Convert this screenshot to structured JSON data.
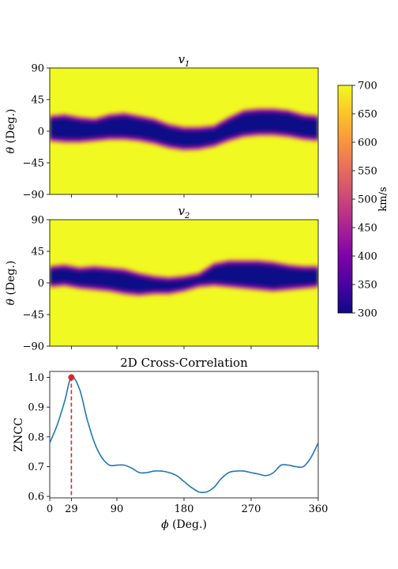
{
  "figure": {
    "panel1_title_base": "v",
    "panel1_title_sub": "1",
    "panel2_title_base": "v",
    "panel2_title_sub": "2",
    "map_ylabel": "θ (Deg.)",
    "map_yticks": [
      "90",
      "45",
      "0",
      "−45",
      "−90"
    ],
    "corr_title": "2D Cross-Correlation",
    "corr_ylabel": "ZNCC",
    "corr_xlabel": "ϕ (Deg.)",
    "colorbar_label": "km/s"
  },
  "colors": {
    "line": "#1f77b4",
    "peak_marker": "#d62728",
    "peak_line": "#d62728",
    "map_high": "#f0f921",
    "map_low": "#0d0887"
  },
  "colorbar": {
    "colormap": "plasma",
    "range": [
      300,
      700
    ],
    "ticks": [
      "700",
      "650",
      "600",
      "550",
      "500",
      "450",
      "400",
      "350",
      "300"
    ]
  },
  "chart_data": [
    {
      "type": "heatmap",
      "title": "v1",
      "ylabel": "θ (Deg.)",
      "xlim": [
        0,
        360
      ],
      "ylim": [
        -90,
        90
      ],
      "colormap": "plasma",
      "vlim": [
        300,
        700
      ],
      "yticks": [
        90,
        45,
        0,
        -45,
        -90
      ],
      "background_value": 700,
      "stream_band": {
        "phi": [
          0,
          20,
          40,
          60,
          80,
          100,
          120,
          140,
          160,
          180,
          200,
          220,
          240,
          260,
          280,
          300,
          320,
          340,
          360
        ],
        "lower_theta": [
          -12,
          -14,
          -14,
          -12,
          -10,
          -10,
          -12,
          -16,
          -22,
          -25,
          -24,
          -20,
          -12,
          -6,
          -4,
          -4,
          -6,
          -10,
          -12
        ],
        "upper_theta": [
          20,
          22,
          18,
          16,
          22,
          24,
          20,
          16,
          8,
          4,
          4,
          6,
          18,
          28,
          30,
          30,
          28,
          22,
          20
        ],
        "core_value": 300
      }
    },
    {
      "type": "heatmap",
      "title": "v2",
      "ylabel": "θ (Deg.)",
      "xlim": [
        0,
        360
      ],
      "ylim": [
        -90,
        90
      ],
      "colormap": "plasma",
      "vlim": [
        300,
        700
      ],
      "yticks": [
        90,
        45,
        0,
        -45,
        -90
      ],
      "background_value": 700,
      "stream_band": {
        "phi": [
          0,
          20,
          40,
          60,
          80,
          100,
          120,
          140,
          160,
          180,
          200,
          220,
          240,
          260,
          280,
          300,
          320,
          340,
          360
        ],
        "lower_theta": [
          -4,
          -2,
          -6,
          -8,
          -10,
          -14,
          -16,
          -14,
          -14,
          -10,
          -4,
          -2,
          -4,
          -6,
          -8,
          -10,
          -8,
          -6,
          -4
        ],
        "upper_theta": [
          22,
          24,
          20,
          22,
          20,
          18,
          12,
          8,
          6,
          8,
          12,
          26,
          30,
          30,
          30,
          28,
          24,
          22,
          22
        ],
        "core_value": 300
      }
    },
    {
      "type": "line",
      "title": "2D Cross-Correlation",
      "xlabel": "ϕ (Deg.)",
      "ylabel": "ZNCC",
      "xlim": [
        0,
        360
      ],
      "ylim": [
        0.595,
        1.02
      ],
      "xticks": [
        0,
        29,
        90,
        180,
        270,
        360
      ],
      "yticks": [
        0.6,
        0.7,
        0.8,
        0.9,
        1.0
      ],
      "series": [
        {
          "x": [
            0,
            10,
            20,
            29,
            40,
            50,
            60,
            70,
            80,
            90,
            100,
            110,
            120,
            130,
            140,
            150,
            160,
            170,
            180,
            190,
            200,
            210,
            220,
            230,
            240,
            250,
            260,
            270,
            280,
            290,
            300,
            310,
            320,
            330,
            340,
            350,
            360
          ],
          "y": [
            0.78,
            0.84,
            0.92,
            1.0,
            0.96,
            0.86,
            0.78,
            0.73,
            0.705,
            0.705,
            0.705,
            0.695,
            0.68,
            0.68,
            0.685,
            0.685,
            0.68,
            0.67,
            0.65,
            0.63,
            0.615,
            0.615,
            0.63,
            0.66,
            0.68,
            0.685,
            0.685,
            0.68,
            0.675,
            0.67,
            0.68,
            0.705,
            0.705,
            0.7,
            0.7,
            0.73,
            0.78
          ]
        }
      ],
      "peak": {
        "x": 29,
        "y": 1.0
      }
    }
  ]
}
